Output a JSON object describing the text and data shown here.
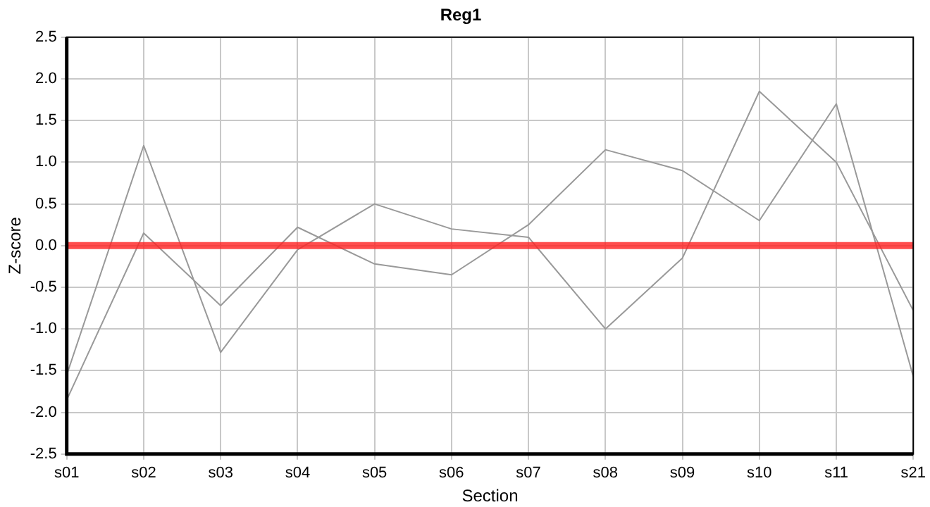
{
  "chart_data": {
    "type": "line",
    "title": "Reg1",
    "xlabel": "Section",
    "ylabel": "Z-score",
    "categories": [
      "s01",
      "s02",
      "s03",
      "s04",
      "s05",
      "s06",
      "s07",
      "s08",
      "s09",
      "s10",
      "s11",
      "s21"
    ],
    "series": [
      {
        "color": "#999999",
        "values": [
          -1.55,
          1.2,
          -1.28,
          -0.05,
          0.5,
          0.2,
          0.1,
          -1.0,
          -0.15,
          1.85,
          1.0,
          -0.78
        ]
      },
      {
        "color": "#999999",
        "values": [
          -1.85,
          0.15,
          -0.72,
          0.22,
          -0.22,
          -0.35,
          0.25,
          1.15,
          0.9,
          0.3,
          1.7,
          -1.57
        ]
      }
    ],
    "ylim": [
      -2.5,
      2.5
    ],
    "yticks": [
      -2.5,
      {
        "value": -2,
        "label": "-2.0"
      },
      -1.5,
      {
        "value": -1,
        "label": "-1.0"
      },
      -0.5,
      {
        "value": 0,
        "label": "0.0"
      },
      0.5,
      {
        "value": 1,
        "label": "1.0"
      },
      1.5,
      {
        "value": 2,
        "label": "2.0"
      },
      2.5
    ],
    "ref_lines": [
      {
        "axis": "y",
        "value": 0,
        "color": "#ff2020"
      }
    ],
    "grid": true,
    "legend": false,
    "marker": "none",
    "line_style": "solid"
  }
}
